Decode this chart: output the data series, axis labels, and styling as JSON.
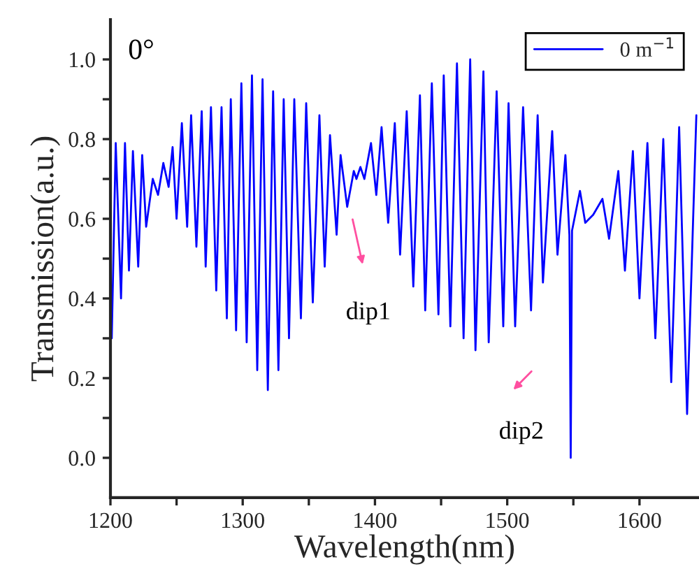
{
  "chart_data": {
    "type": "line",
    "xlabel": "Wavelength(nm)",
    "ylabel": "Transmission(a.u.)",
    "annotations": [
      "0°",
      "dip1",
      "dip2"
    ],
    "xlim": [
      1200,
      1645
    ],
    "ylim": [
      -0.1,
      1.1
    ],
    "xticks": [
      1200,
      {
        "value": 1250,
        "label": null
      },
      1300,
      {
        "value": 1350,
        "label": null
      },
      1400,
      {
        "value": 1450,
        "label": null
      },
      1500,
      {
        "value": 1550,
        "label": null
      },
      1600
    ],
    "yticks": [
      {
        "value": 0,
        "label": "0.0"
      },
      {
        "value": 0.1,
        "label": null
      },
      {
        "value": 0.2,
        "label": "0.2"
      },
      {
        "value": 0.3,
        "label": null
      },
      {
        "value": 0.4,
        "label": "0.4"
      },
      {
        "value": 0.5,
        "label": null
      },
      {
        "value": 0.6,
        "label": "0.6"
      },
      {
        "value": 0.7,
        "label": null
      },
      {
        "value": 0.8,
        "label": "0.8"
      },
      {
        "value": 0.9,
        "label": null
      },
      {
        "value": 1.0,
        "label": "1.0"
      }
    ],
    "grid": false,
    "legend": "top right",
    "marker": "none",
    "line_style": "solid",
    "series": [
      {
        "name": "0 m$^{−1}$",
        "color": "#0000ff",
        "x": [
          1201,
          1204,
          1208,
          1211,
          1214,
          1217,
          1221,
          1224,
          1227,
          1232,
          1236,
          1240,
          1244,
          1247,
          1250,
          1254,
          1258,
          1261,
          1265,
          1269,
          1272,
          1276,
          1280,
          1284,
          1288,
          1291,
          1295,
          1299,
          1303,
          1307,
          1311,
          1315,
          1319,
          1323,
          1327,
          1331,
          1335,
          1339,
          1344,
          1348,
          1353,
          1358,
          1362,
          1366,
          1371,
          1374,
          1379,
          1384,
          1386,
          1389,
          1392,
          1397,
          1401,
          1405,
          1410,
          1415,
          1419,
          1424,
          1429,
          1434,
          1438,
          1443,
          1448,
          1452,
          1457,
          1462,
          1467,
          1472,
          1476,
          1482,
          1486,
          1492,
          1497,
          1501,
          1506,
          1512,
          1518,
          1523,
          1527,
          1534,
          1538,
          1544,
          1547,
          1548,
          1549,
          1555,
          1559,
          1565,
          1572,
          1577,
          1584,
          1589,
          1595,
          1600,
          1606,
          1612,
          1618,
          1624,
          1630,
          1636,
          1643
        ],
        "values": [
          0.3,
          0.79,
          0.4,
          0.79,
          0.47,
          0.77,
          0.48,
          0.76,
          0.58,
          0.7,
          0.66,
          0.74,
          0.68,
          0.78,
          0.6,
          0.84,
          0.58,
          0.86,
          0.53,
          0.87,
          0.48,
          0.88,
          0.42,
          0.88,
          0.35,
          0.9,
          0.32,
          0.94,
          0.29,
          0.96,
          0.22,
          0.95,
          0.17,
          0.92,
          0.22,
          0.9,
          0.3,
          0.9,
          0.35,
          0.89,
          0.39,
          0.86,
          0.48,
          0.81,
          0.56,
          0.76,
          0.63,
          0.72,
          0.7,
          0.73,
          0.7,
          0.79,
          0.66,
          0.83,
          0.59,
          0.84,
          0.51,
          0.87,
          0.43,
          0.91,
          0.37,
          0.94,
          0.36,
          0.96,
          0.33,
          0.99,
          0.3,
          1.0,
          0.27,
          0.97,
          0.29,
          0.92,
          0.33,
          0.89,
          0.33,
          0.88,
          0.37,
          0.86,
          0.44,
          0.82,
          0.51,
          0.76,
          0.56,
          0.0,
          0.57,
          0.67,
          0.59,
          0.61,
          0.65,
          0.55,
          0.72,
          0.47,
          0.77,
          0.4,
          0.79,
          0.3,
          0.8,
          0.19,
          0.83,
          0.11,
          0.86
        ]
      }
    ]
  }
}
